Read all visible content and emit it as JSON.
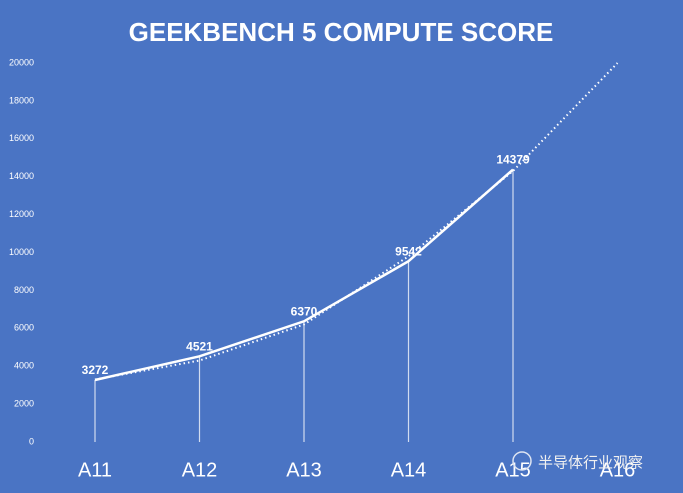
{
  "chart_data": {
    "type": "line",
    "title": "GEEKBENCH 5 COMPUTE SCORE",
    "categories": [
      "A11",
      "A12",
      "A13",
      "A14",
      "A15",
      "A16"
    ],
    "series": [
      {
        "color": "#ffffff",
        "values": [
          3272,
          4521,
          6370,
          9542,
          14379,
          null
        ]
      }
    ],
    "trendline": {
      "color": "#ffffff",
      "values": [
        3300,
        4300,
        6200,
        9800,
        14300,
        20000
      ]
    },
    "ylim": [
      0,
      20000
    ],
    "yticks": [
      0,
      2000,
      4000,
      6000,
      8000,
      10000,
      12000,
      14000,
      16000,
      18000,
      20000
    ],
    "drop_lines": true
  },
  "watermark": "半导体行业观察"
}
